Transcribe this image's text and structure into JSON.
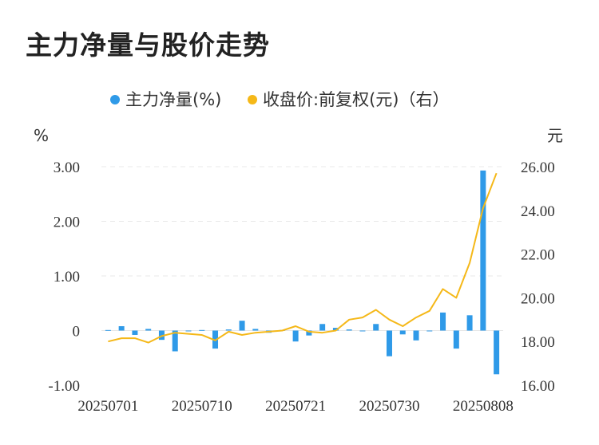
{
  "title": "主力净量与股价走势",
  "chart_data": {
    "type": "bar+line",
    "title": "主力净量与股价走势",
    "legend": {
      "placement": "top-center",
      "items": [
        {
          "label": "主力净量(%)",
          "color": "#2F9AE8"
        },
        {
          "label": "收盘价:前复权(元)（右）",
          "color": "#F5B818"
        }
      ]
    },
    "y_left": {
      "unit": "%",
      "ticks": [
        "3.00",
        "2.00",
        "1.00",
        "0",
        "-1.00"
      ],
      "min": -1,
      "max": 3
    },
    "y_right": {
      "unit": "元",
      "ticks": [
        "26.00",
        "24.00",
        "22.00",
        "20.00",
        "18.00",
        "16.00"
      ],
      "min": 16,
      "max": 26
    },
    "x_tick_labels": [
      "20250701",
      "20250710",
      "20250721",
      "20250730",
      "20250808"
    ],
    "grid": true,
    "series": [
      {
        "name": "主力净量(%)",
        "type": "bar",
        "axis": "left",
        "color": "#2F9AE8",
        "values": [
          0.01,
          0.08,
          -0.08,
          0.03,
          -0.17,
          -0.38,
          -0.01,
          0.01,
          -0.33,
          0.02,
          0.18,
          0.03,
          -0.04,
          0.01,
          -0.2,
          -0.09,
          0.12,
          0.05,
          0.02,
          0.0,
          0.12,
          -0.47,
          -0.07,
          -0.18,
          -0.01,
          0.33,
          -0.33,
          0.28,
          2.93,
          -0.8
        ]
      },
      {
        "name": "收盘价:前复权(元)（右）",
        "type": "line",
        "axis": "right",
        "color": "#F5B818",
        "values": [
          18.0,
          18.15,
          18.15,
          17.95,
          18.25,
          18.4,
          18.35,
          18.3,
          18.05,
          18.45,
          18.3,
          18.4,
          18.45,
          18.5,
          18.7,
          18.45,
          18.4,
          18.5,
          19.0,
          19.1,
          19.45,
          19.0,
          18.7,
          19.1,
          19.4,
          20.4,
          20.0,
          21.6,
          24.1,
          25.7
        ]
      }
    ]
  }
}
